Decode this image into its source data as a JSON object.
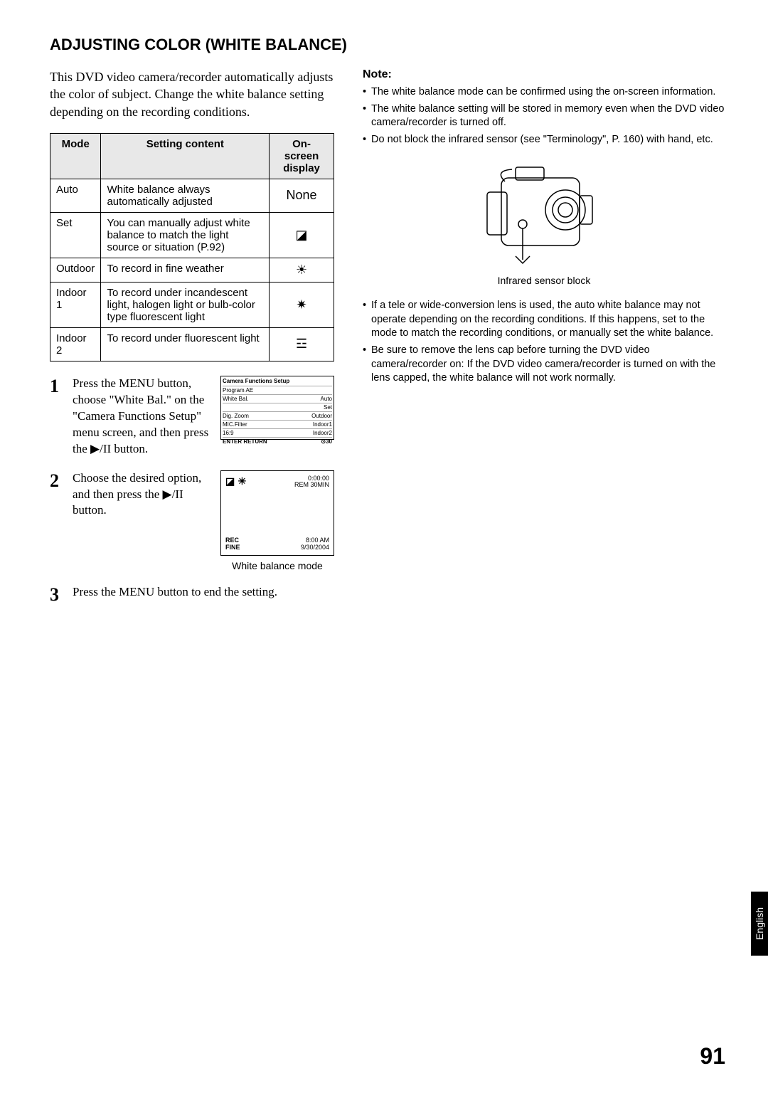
{
  "title": "ADJUSTING COLOR (WHITE BALANCE)",
  "intro": "This DVD video camera/recorder automatically adjusts the color of subject. Change the white balance setting depending on the recording conditions.",
  "table": {
    "headers": [
      "Mode",
      "Setting content",
      "On-screen display"
    ],
    "rows": [
      {
        "mode": "Auto",
        "content": "White balance always automatically adjusted",
        "icon": "None"
      },
      {
        "mode": "Set",
        "content": "You can manually adjust white balance to match the light source or situation (P.92)",
        "icon": "◪"
      },
      {
        "mode": "Outdoor",
        "content": "To record in fine weather",
        "icon": "☀"
      },
      {
        "mode": "Indoor 1",
        "content": "To record under incandescent light, halogen light or bulb-color type fluorescent light",
        "icon": "✷"
      },
      {
        "mode": "Indoor 2",
        "content": "To record under fluorescent light",
        "icon": "☲"
      }
    ]
  },
  "steps": [
    {
      "num": "1",
      "text": "Press the MENU button, choose \"White Bal.\" on the \"Camera Functions Setup\" menu screen, and then press the ▶/II button."
    },
    {
      "num": "2",
      "text": "Choose the desired option, and then press the ▶/II button."
    },
    {
      "num": "3",
      "text": "Press the MENU button to end the setting."
    }
  ],
  "menu_screen": {
    "title": "Camera Functions Setup",
    "rows": [
      [
        "Program AE",
        ""
      ],
      [
        "White Bal.",
        "Auto"
      ],
      [
        "",
        "Set"
      ],
      [
        "Dig. Zoom",
        "Outdoor"
      ],
      [
        "MIC.Filter",
        "Indoor1"
      ],
      [
        "16:9",
        "Indoor2"
      ]
    ],
    "footer": "ENTER  RETURN"
  },
  "wb_screen": {
    "top_left_icons": "◪ ☀",
    "top_right": "0:00:00\\nREM 30MIN",
    "bot_left": "REC\\nFINE",
    "bot_right": "8:00 AM\\n9/30/2004",
    "caption": "White balance mode"
  },
  "notes": {
    "heading": "Note:",
    "items": [
      "The white balance mode can be confirmed using the on-screen information.",
      "The white balance setting will be stored in memory even when the DVD video camera/recorder is turned off.",
      "Do not block the infrared sensor (see \"Terminology\", P. 160) with hand, etc."
    ],
    "items2": [
      "If a tele or wide-conversion lens is used, the auto white balance may not operate depending on the recording conditions. If this happens, set to the mode to match the recording conditions, or manually set the white balance.",
      "Be sure to remove the lens cap before turning the DVD video camera/recorder on: If the DVD video camera/recorder is turned on with the lens capped, the white balance will not work normally."
    ]
  },
  "camera_caption": "Infrared sensor block",
  "page_number": "91",
  "language_tab": "English"
}
